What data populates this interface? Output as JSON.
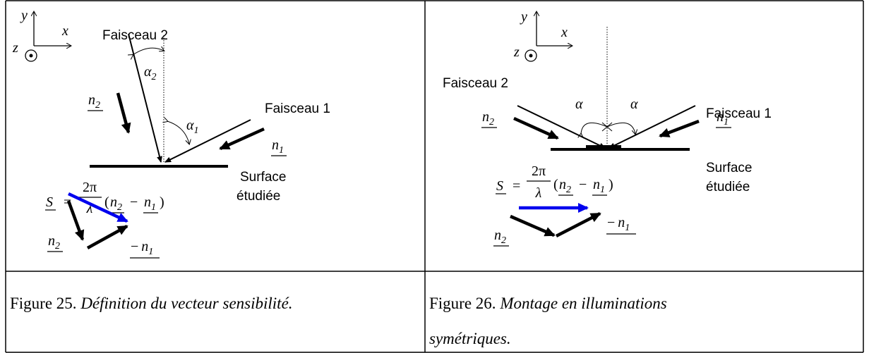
{
  "figures": [
    {
      "axes": {
        "y": "y",
        "x": "x",
        "z": "z"
      },
      "beam2": "Faisceau 2",
      "beam1": "Faisceau 1",
      "alpha2": {
        "symbol": "α",
        "sub": "2"
      },
      "alpha1": {
        "symbol": "α",
        "sub": "1"
      },
      "n2": {
        "symbol": "n",
        "sub": "2"
      },
      "n1": {
        "symbol": "n",
        "sub": "1"
      },
      "surface": [
        "Surface",
        "étudiée"
      ],
      "formula": {
        "lhs": "S",
        "eq": "=",
        "num": "2π",
        "den": "λ",
        "open": "(",
        "n2": {
          "symbol": "n",
          "sub": "2"
        },
        "minus": "−",
        "n1": {
          "symbol": "n",
          "sub": "1"
        },
        "close": ")"
      },
      "triangle": {
        "n2": {
          "symbol": "n",
          "sub": "2"
        },
        "minus_n1": {
          "minus": "−",
          "symbol": "n",
          "sub": "1"
        }
      },
      "caption": {
        "number": "Figure 25.",
        "text": "Définition du vecteur sensibilité."
      }
    },
    {
      "axes": {
        "y": "y",
        "x": "x",
        "z": "z"
      },
      "beam2": "Faisceau 2",
      "beam1": "Faisceau 1",
      "alpha": [
        "α",
        "α"
      ],
      "n2": {
        "symbol": "n",
        "sub": "2"
      },
      "n1": {
        "symbol": "n",
        "sub": "1"
      },
      "surface": [
        "Surface",
        "étudiée"
      ],
      "formula": {
        "lhs": "S",
        "eq": "=",
        "num": "2π",
        "den": "λ",
        "open": "(",
        "n2": {
          "symbol": "n",
          "sub": "2"
        },
        "minus": "−",
        "n1": {
          "symbol": "n",
          "sub": "1"
        },
        "close": ")"
      },
      "triangle": {
        "n2": {
          "symbol": "n",
          "sub": "2"
        },
        "minus_n1": {
          "minus": "−",
          "symbol": "n",
          "sub": "1"
        }
      },
      "caption": {
        "number": "Figure 26.",
        "text": [
          "Montage en illuminations",
          "symétriques."
        ]
      }
    }
  ]
}
